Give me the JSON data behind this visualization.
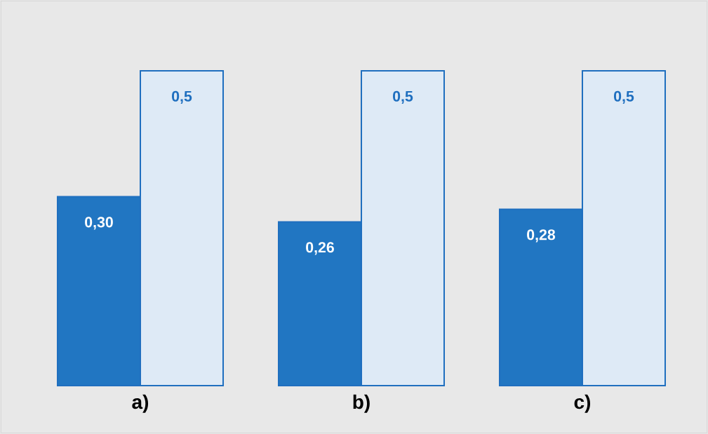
{
  "chart_data": {
    "type": "bar",
    "categories": [
      "a)",
      "b)",
      "c)"
    ],
    "series": [
      {
        "color": "#2176c2",
        "values": [
          0.3,
          0.26,
          0.28
        ],
        "value_labels": [
          "0,30",
          "0,26",
          "0,28"
        ]
      },
      {
        "color": "#deeaf6",
        "values": [
          0.5,
          0.5,
          0.5
        ],
        "value_labels": [
          "0,5",
          "0,5",
          "0,5"
        ]
      }
    ]
  }
}
